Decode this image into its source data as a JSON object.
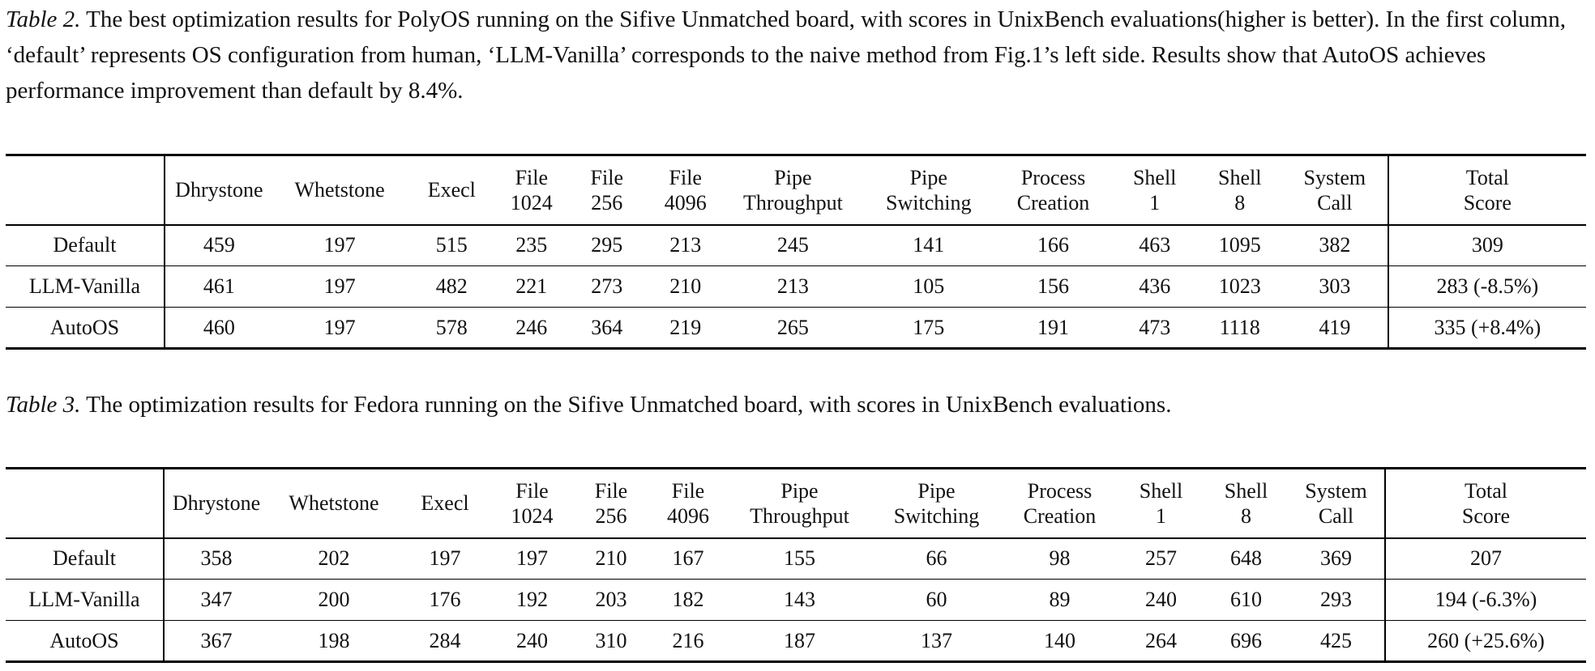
{
  "table2": {
    "caption_label": "Table 2.",
    "caption_text": " The best optimization results for PolyOS running on the Sifive Unmatched board, with scores in UnixBench evaluations(higher is better). In the first column, ‘default’ represents OS configuration from human, ‘LLM-Vanilla’ corresponds to the naive method from Fig.1’s left side. Results show that AutoOS achieves performance improvement than default by 8.4%.",
    "columns": [
      [
        "Dhrystone"
      ],
      [
        "Whetstone"
      ],
      [
        "Execl"
      ],
      [
        "File",
        "1024"
      ],
      [
        "File",
        "256"
      ],
      [
        "File",
        "4096"
      ],
      [
        "Pipe",
        "Throughput"
      ],
      [
        "Pipe",
        "Switching"
      ],
      [
        "Process",
        "Creation"
      ],
      [
        "Shell",
        "1"
      ],
      [
        "Shell",
        "8"
      ],
      [
        "System",
        "Call"
      ],
      [
        "Total",
        "Score"
      ]
    ],
    "rows": [
      {
        "label": "Default",
        "cells": [
          "459",
          "197",
          "515",
          "235",
          "295",
          "213",
          "245",
          "141",
          "166",
          "463",
          "1095",
          "382",
          "309"
        ],
        "bold": []
      },
      {
        "label": "LLM-Vanilla",
        "cells": [
          "461",
          "197",
          "482",
          "221",
          "273",
          "210",
          "213",
          "105",
          "156",
          "436",
          "1023",
          "303",
          "283 (-8.5%)"
        ],
        "bold": []
      },
      {
        "label": "AutoOS",
        "cells": [
          "460",
          "197",
          "578",
          "246",
          "364",
          "219",
          "265",
          "175",
          "191",
          "473",
          "1118",
          "419",
          "335 (+8.4%)"
        ],
        "bold": [
          2,
          3,
          4,
          5,
          6,
          7,
          8,
          9,
          10,
          11,
          12
        ]
      }
    ]
  },
  "table3": {
    "caption_label": "Table 3.",
    "caption_text": " The optimization results for Fedora running on the Sifive Unmatched board, with scores in UnixBench evaluations.",
    "columns": [
      [
        "Dhrystone"
      ],
      [
        "Whetstone"
      ],
      [
        "Execl"
      ],
      [
        "File",
        "1024"
      ],
      [
        "File",
        "256"
      ],
      [
        "File",
        "4096"
      ],
      [
        "Pipe",
        "Throughput"
      ],
      [
        "Pipe",
        "Switching"
      ],
      [
        "Process",
        "Creation"
      ],
      [
        "Shell",
        "1"
      ],
      [
        "Shell",
        "8"
      ],
      [
        "System",
        "Call"
      ],
      [
        "Total",
        "Score"
      ]
    ],
    "rows": [
      {
        "label": "Default",
        "cells": [
          "358",
          "202",
          "197",
          "197",
          "210",
          "167",
          "155",
          "66",
          "98",
          "257",
          "648",
          "369",
          "207"
        ],
        "bold": []
      },
      {
        "label": "LLM-Vanilla",
        "cells": [
          "347",
          "200",
          "176",
          "192",
          "203",
          "182",
          "143",
          "60",
          "89",
          "240",
          "610",
          "293",
          "194 (-6.3%)"
        ],
        "bold": []
      },
      {
        "label": "AutoOS",
        "cells": [
          "367",
          "198",
          "284",
          "240",
          "310",
          "216",
          "187",
          "137",
          "140",
          "264",
          "696",
          "425",
          "260 (+25.6%)"
        ],
        "bold": [
          0,
          2,
          3,
          4,
          5,
          6,
          7,
          8,
          9,
          10,
          11,
          12
        ]
      }
    ]
  }
}
